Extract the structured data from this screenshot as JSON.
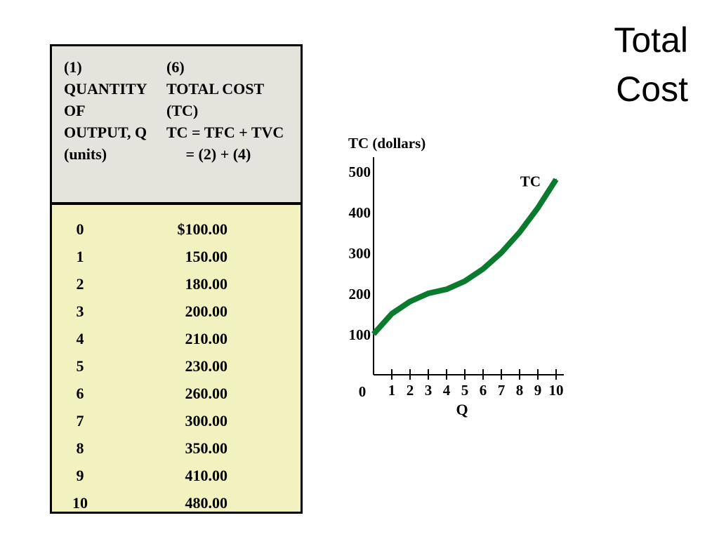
{
  "slide": {
    "title_line1": "Total",
    "title_line2": "Cost"
  },
  "table": {
    "header_col1": [
      "(1)",
      "QUANTITY",
      "OF",
      "OUTPUT, Q",
      "(units)"
    ],
    "header_col2": [
      "(6)",
      "TOTAL COST",
      "(TC)",
      "TC = TFC + TVC",
      "     = (2) + (4)"
    ],
    "rows": [
      {
        "q": "0",
        "tc": "$100.00"
      },
      {
        "q": "1",
        "tc": "150.00"
      },
      {
        "q": "2",
        "tc": "180.00"
      },
      {
        "q": "3",
        "tc": "200.00"
      },
      {
        "q": "4",
        "tc": "210.00"
      },
      {
        "q": "5",
        "tc": "230.00"
      },
      {
        "q": "6",
        "tc": "260.00"
      },
      {
        "q": "7",
        "tc": "300.00"
      },
      {
        "q": "8",
        "tc": "350.00"
      },
      {
        "q": "9",
        "tc": "410.00"
      },
      {
        "q": "10",
        "tc": "480.00"
      }
    ]
  },
  "chart_data": {
    "type": "line",
    "title": "",
    "ylabel": "TC (dollars)",
    "xlabel": "Q",
    "x": [
      0,
      1,
      2,
      3,
      4,
      5,
      6,
      7,
      8,
      9,
      10
    ],
    "series": [
      {
        "name": "TC",
        "values": [
          100,
          150,
          180,
          200,
          210,
          230,
          260,
          300,
          350,
          410,
          480
        ],
        "color": "#0a7a2e"
      }
    ],
    "xlim": [
      0,
      10
    ],
    "ylim": [
      0,
      500
    ],
    "xticks": [
      "0",
      "1",
      "2",
      "3",
      "4",
      "5",
      "6",
      "7",
      "8",
      "9",
      "10"
    ],
    "yticks": [
      "100",
      "200",
      "300",
      "400",
      "500"
    ],
    "grid": false,
    "legend": "label near curve end"
  }
}
